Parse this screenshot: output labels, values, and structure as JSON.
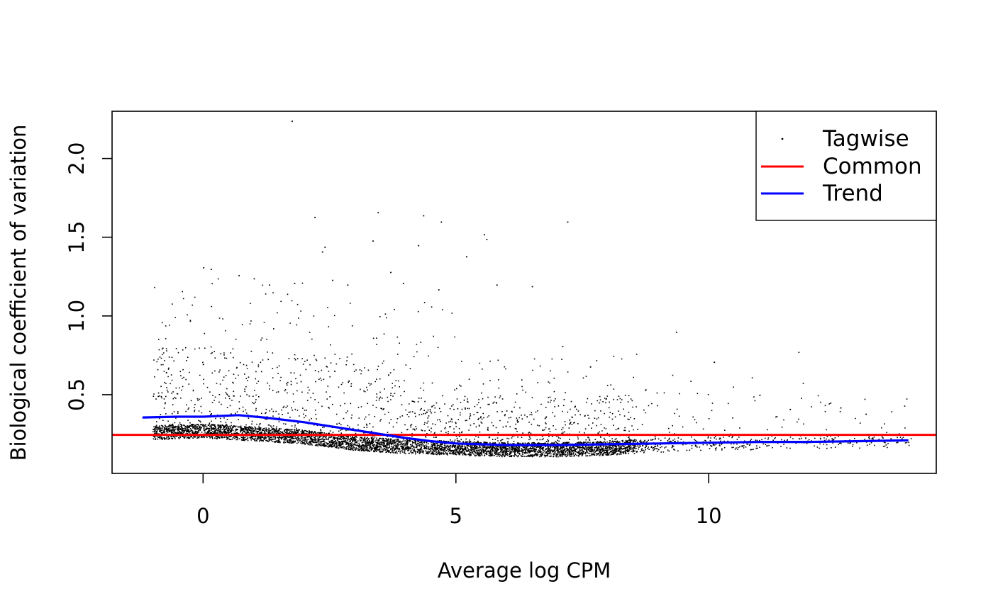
{
  "chart_data": {
    "type": "scatter",
    "title": "",
    "xlabel": "Average log CPM",
    "ylabel": "Biological coefficient of variation",
    "xlim": [
      -1.8,
      14.5
    ],
    "ylim": [
      0.0,
      2.3
    ],
    "x_ticks": [
      {
        "value": 0,
        "label": "0"
      },
      {
        "value": 5,
        "label": "5"
      },
      {
        "value": 10,
        "label": "10"
      }
    ],
    "y_ticks": [
      {
        "value": 0.5,
        "label": "0.5"
      },
      {
        "value": 1.0,
        "label": "1.0"
      },
      {
        "value": 1.5,
        "label": "1.5"
      },
      {
        "value": 2.0,
        "label": "2.0"
      }
    ],
    "grid": false,
    "legend_position": "top-right",
    "series": [
      {
        "name": "Tagwise",
        "kind": "points",
        "color": "#000000",
        "density_profile": {
          "x_range": [
            -1.2,
            14.0
          ],
          "baseline_y": [
            [
              -0.9,
              0.25
            ],
            [
              0,
              0.26
            ],
            [
              1,
              0.24
            ],
            [
              2,
              0.22
            ],
            [
              3,
              0.18
            ],
            [
              4,
              0.16
            ],
            [
              5,
              0.15
            ],
            [
              6,
              0.14
            ],
            [
              7,
              0.14
            ],
            [
              8,
              0.15
            ],
            [
              9,
              0.17
            ],
            [
              10,
              0.18
            ],
            [
              12,
              0.19
            ],
            [
              14,
              0.2
            ]
          ],
          "approx_count": 9000
        },
        "outliers": [
          [
            1.75,
            2.24
          ],
          [
            3.45,
            1.66
          ],
          [
            4.35,
            1.64
          ],
          [
            4.7,
            1.6
          ],
          [
            7.2,
            1.6
          ],
          [
            5.55,
            1.52
          ],
          [
            5.6,
            1.49
          ],
          [
            2.2,
            1.63
          ],
          [
            3.35,
            1.48
          ],
          [
            4.25,
            1.45
          ],
          [
            5.2,
            1.38
          ],
          [
            0,
            1.31
          ],
          [
            0.15,
            1.3
          ],
          [
            2.4,
            1.44
          ],
          [
            2.35,
            1.41
          ],
          [
            0.7,
            1.26
          ],
          [
            1.0,
            1.24
          ],
          [
            2.55,
            1.23
          ],
          [
            3.7,
            1.28
          ],
          [
            6.5,
            1.19
          ],
          [
            9.35,
            0.9
          ],
          [
            7.65,
            0.68
          ],
          [
            10.1,
            0.71
          ],
          [
            12.4,
            0.45
          ],
          [
            13.1,
            0.38
          ],
          [
            11.6,
            0.41
          ],
          [
            11.0,
            0.5
          ],
          [
            12.6,
            0.42
          ],
          [
            1.8,
            1.21
          ],
          [
            5.8,
            1.2
          ],
          [
            4.65,
            1.17
          ],
          [
            3.95,
            1.21
          ],
          [
            2.85,
            1.2
          ],
          [
            1.3,
            1.2
          ],
          [
            7.1,
            0.81
          ]
        ]
      },
      {
        "name": "Common",
        "kind": "hline",
        "color": "#ff0000",
        "y": 0.245
      },
      {
        "name": "Trend",
        "kind": "line",
        "color": "#0000ff",
        "x": [
          -1.2,
          -0.5,
          0,
          0.7,
          1.2,
          2.0,
          3.0,
          4.0,
          4.5,
          5.0,
          6.0,
          7.0,
          8.0,
          9.0,
          10.0,
          11.0,
          12.0,
          13.0,
          13.95
        ],
        "y": [
          0.355,
          0.36,
          0.36,
          0.37,
          0.355,
          0.325,
          0.275,
          0.225,
          0.205,
          0.19,
          0.18,
          0.18,
          0.185,
          0.19,
          0.195,
          0.2,
          0.2,
          0.205,
          0.21
        ]
      }
    ]
  }
}
